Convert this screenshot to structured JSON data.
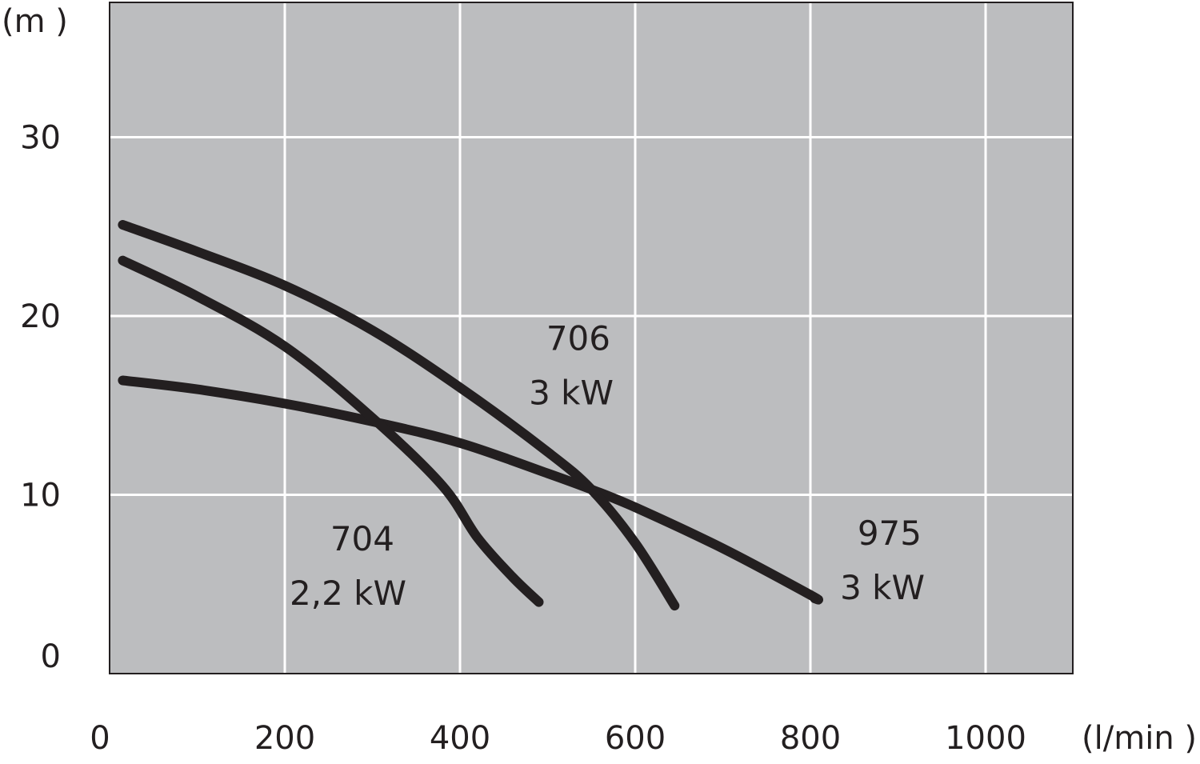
{
  "chart_data": {
    "type": "line",
    "title": "",
    "y_unit_label": "(m )",
    "x_unit_label": "(l/min )",
    "xlim": [
      0,
      1100
    ],
    "ylim": [
      0,
      38
    ],
    "x_ticks": [
      0,
      200,
      400,
      600,
      800,
      1000
    ],
    "y_ticks": [
      0,
      10,
      20,
      30
    ],
    "grid": true,
    "colors": {
      "plot_bg": "#bcbdbf",
      "grid": "#ffffff",
      "line": "#231f20",
      "text": "#231f20"
    },
    "series": [
      {
        "name": "975 3 kW",
        "label_lines": [
          "975",
          "3 kW"
        ],
        "points": [
          [
            15,
            16.4
          ],
          [
            100,
            15.9
          ],
          [
            200,
            15.1
          ],
          [
            300,
            14.1
          ],
          [
            400,
            12.9
          ],
          [
            500,
            11.2
          ],
          [
            550,
            10.3
          ],
          [
            600,
            9.3
          ],
          [
            700,
            7.0
          ],
          [
            800,
            4.4
          ],
          [
            805,
            4.2
          ]
        ]
      },
      {
        "name": "704 2,2 kW",
        "label_lines": [
          "704",
          "2,2 kW"
        ],
        "points": [
          [
            15,
            23.1
          ],
          [
            100,
            21.1
          ],
          [
            200,
            18.3
          ],
          [
            300,
            14.3
          ],
          [
            380,
            10.5
          ],
          [
            420,
            7.6
          ],
          [
            460,
            5.4
          ],
          [
            490,
            4.0
          ]
        ]
      },
      {
        "name": "706 3 kW",
        "label_lines": [
          "706",
          "3 kW"
        ],
        "points": [
          [
            15,
            25.1
          ],
          [
            100,
            23.6
          ],
          [
            200,
            21.7
          ],
          [
            300,
            19.2
          ],
          [
            400,
            16.0
          ],
          [
            500,
            12.4
          ],
          [
            550,
            10.3
          ],
          [
            600,
            7.3
          ],
          [
            645,
            3.8
          ]
        ]
      }
    ]
  }
}
